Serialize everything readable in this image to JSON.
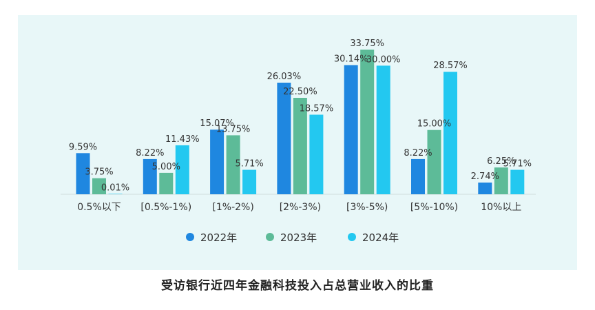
{
  "chart_data": {
    "type": "bar",
    "title": "受访银行近四年金融科技投入占总营业收入的比重",
    "xlabel": "",
    "ylabel": "",
    "ylim": [
      0,
      35
    ],
    "grid": false,
    "legend_position": "bottom",
    "categories": [
      "0.5%以下",
      "[0.5%-1%)",
      "[1%-2%)",
      "[2%-3%)",
      "[3%-5%)",
      "[5%-10%)",
      "10%以上"
    ],
    "series": [
      {
        "name": "2022年",
        "color": "#1f87e0",
        "values": [
          9.59,
          8.22,
          15.07,
          26.03,
          30.14,
          8.22,
          2.74
        ],
        "labels": [
          "9.59%",
          "8.22%",
          "15.07%",
          "26.03%",
          "30.14%",
          "8.22%",
          "2.74%"
        ]
      },
      {
        "name": "2023年",
        "color": "#5dbb98",
        "values": [
          3.75,
          5.0,
          13.75,
          22.5,
          33.75,
          15.0,
          6.25
        ],
        "labels": [
          "3.75%",
          "5.00%",
          "13.75%",
          "22.50%",
          "33.75%",
          "15.00%",
          "6.25%"
        ]
      },
      {
        "name": "2024年",
        "color": "#23c8f0",
        "values": [
          0.01,
          11.43,
          5.71,
          18.57,
          30.0,
          28.57,
          5.71
        ],
        "labels": [
          "0.01%",
          "11.43%",
          "5.71%",
          "18.57%",
          "30.00%",
          "28.57%",
          "5.71%"
        ]
      }
    ]
  }
}
